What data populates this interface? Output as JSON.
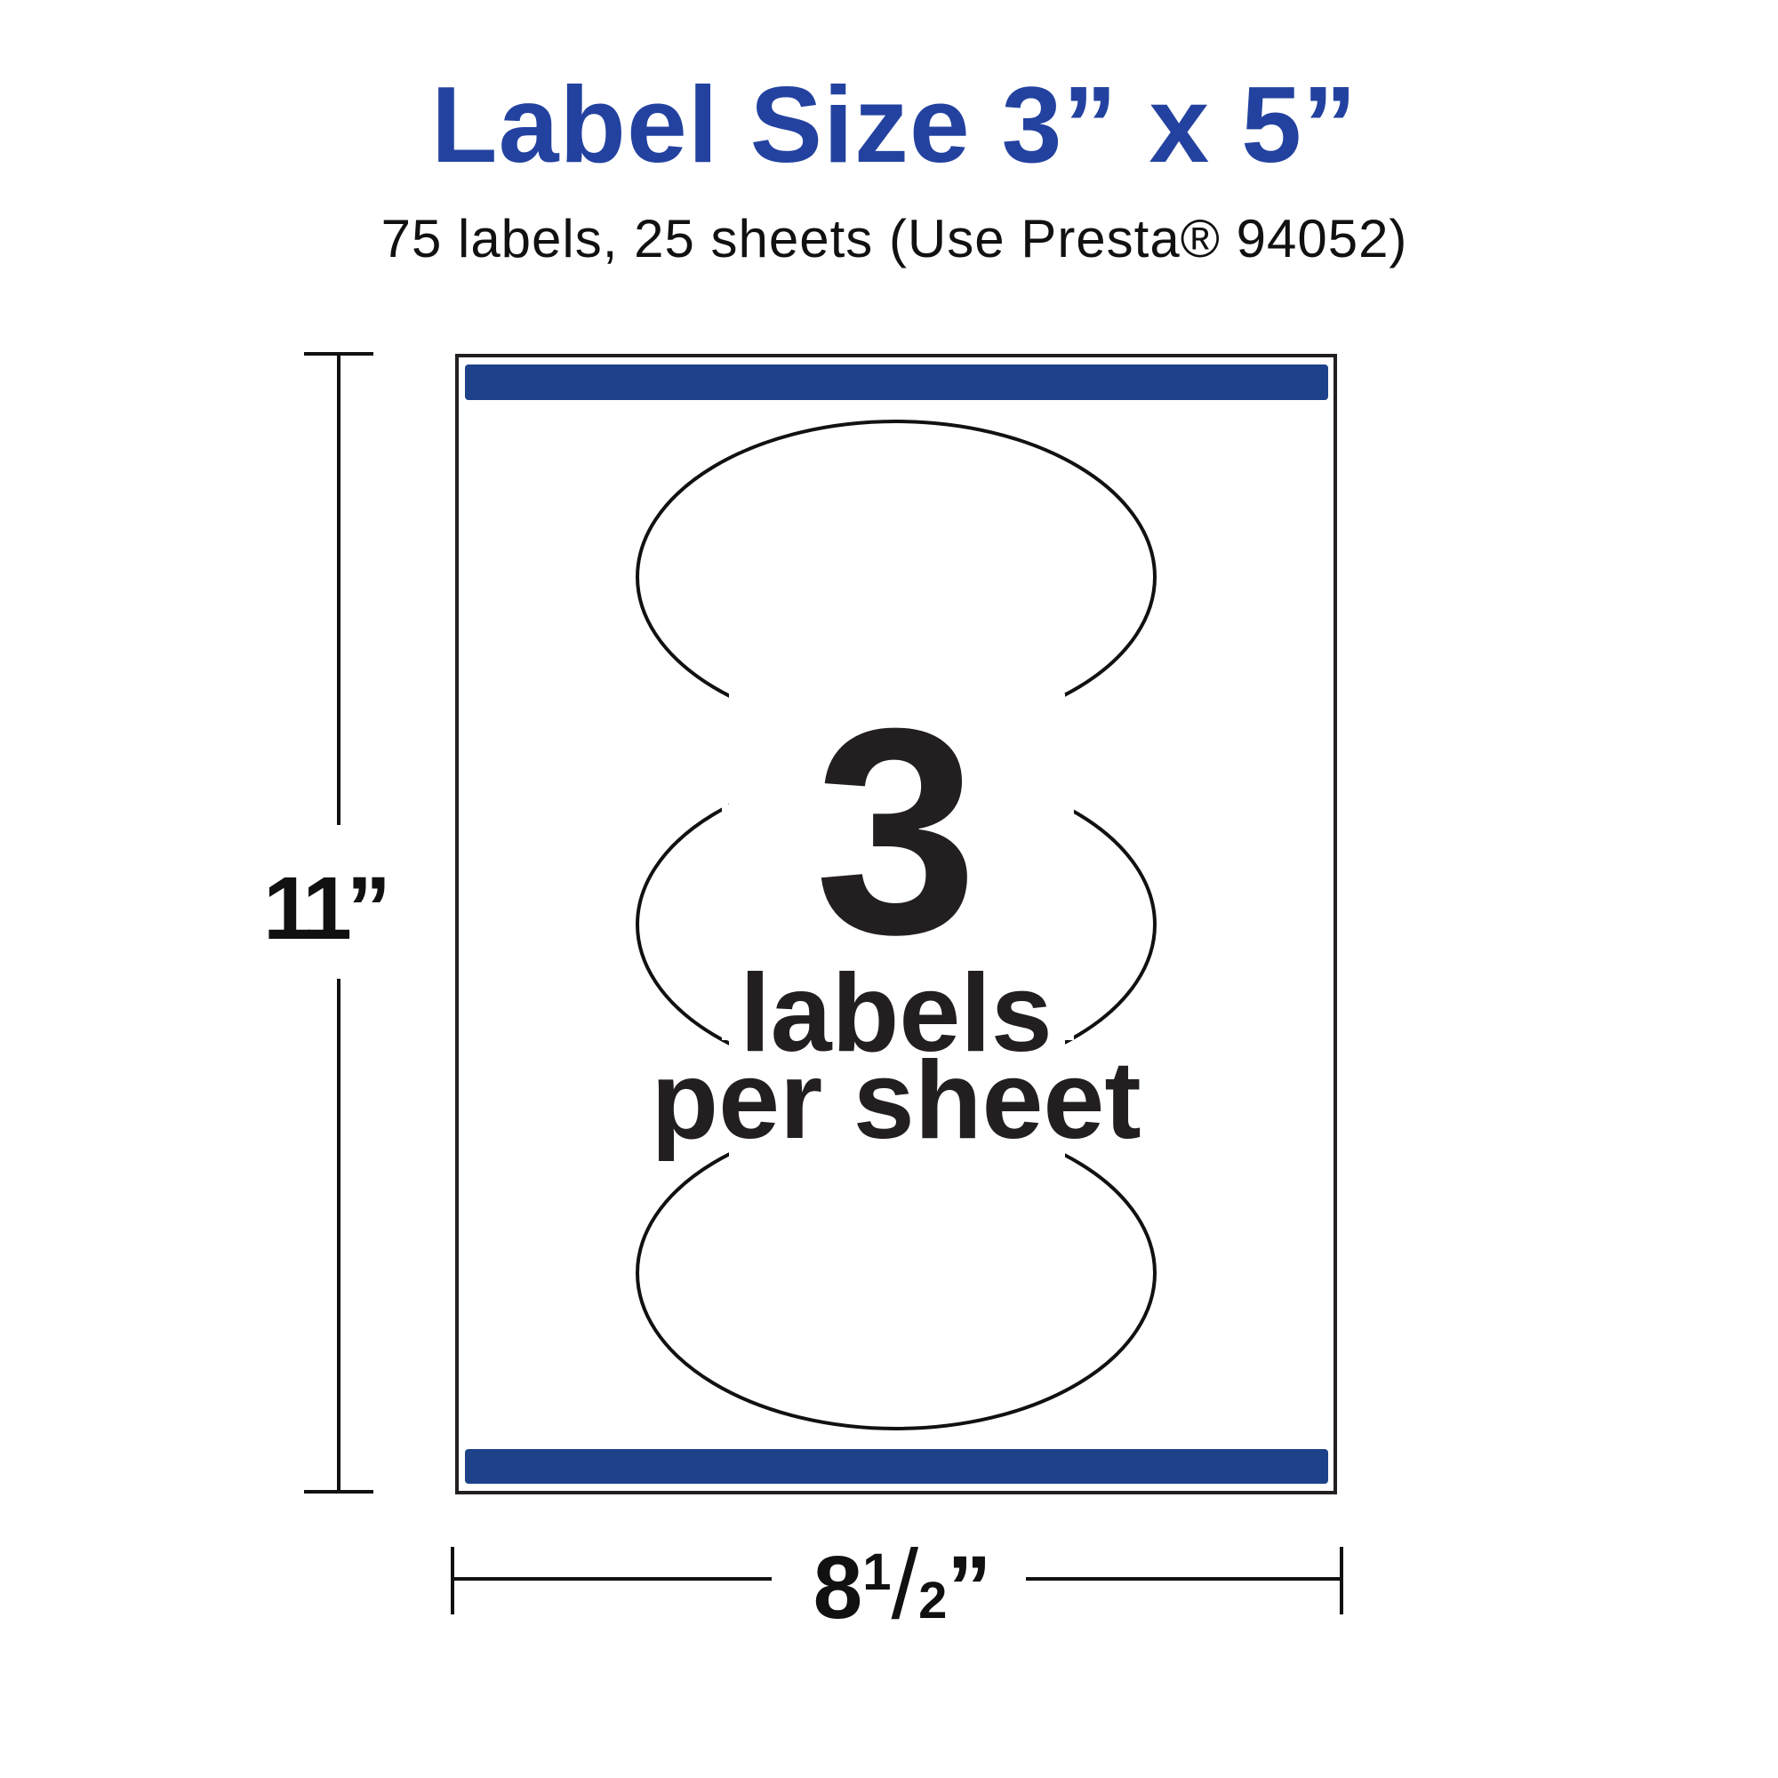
{
  "header": {
    "title": "Label Size 3” x 5”",
    "subtitle": "75 labels, 25 sheets (Use Presta® 94052)"
  },
  "sheet": {
    "count": "3",
    "line1": "labels",
    "line2": "per sheet",
    "label_shape": "oval",
    "labels_drawn": 3
  },
  "dimensions": {
    "height": "11”",
    "width_whole": "8",
    "width_fraction_num": "1",
    "width_fraction_den": "2",
    "width_suffix": "”"
  },
  "colors": {
    "title": "#2342a0",
    "bars": "#1d428a",
    "ink": "#231f20"
  }
}
